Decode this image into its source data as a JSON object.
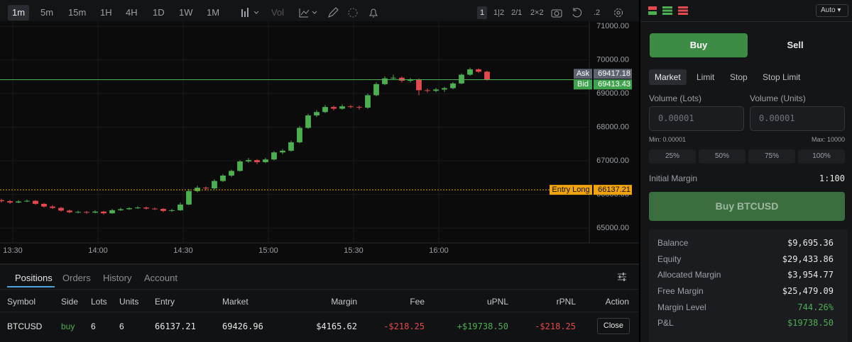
{
  "toolbar": {
    "timeframes": [
      "1m",
      "5m",
      "15m",
      "1H",
      "4H",
      "1D",
      "1W",
      "1M"
    ],
    "vol": "Vol",
    "layouts": [
      "1",
      "1|2",
      "2/1",
      "2×2"
    ],
    "decimals": ".2"
  },
  "chart_data": {
    "type": "candlestick",
    "x": [
      806,
      809,
      812,
      815,
      818,
      821,
      824,
      827,
      830,
      833,
      836,
      839,
      842,
      845,
      848,
      851,
      854,
      857,
      860,
      863,
      866,
      869,
      872,
      875,
      878,
      881,
      884,
      887,
      890,
      893,
      896,
      899,
      902,
      905,
      908,
      911,
      914,
      917,
      920,
      923,
      926,
      929,
      932,
      935,
      938,
      941,
      944,
      947,
      950,
      953,
      956,
      959,
      962,
      965,
      968,
      971,
      974,
      977
    ],
    "candles": [
      [
        65830,
        65870,
        65760,
        65800
      ],
      [
        65800,
        65840,
        65720,
        65760
      ],
      [
        65760,
        65830,
        65740,
        65790
      ],
      [
        65790,
        65850,
        65770,
        65810
      ],
      [
        65810,
        65830,
        65690,
        65720
      ],
      [
        65720,
        65750,
        65610,
        65640
      ],
      [
        65640,
        65680,
        65570,
        65600
      ],
      [
        65600,
        65630,
        65490,
        65520
      ],
      [
        65520,
        65550,
        65440,
        65470
      ],
      [
        65470,
        65520,
        65440,
        65480
      ],
      [
        65480,
        65510,
        65420,
        65460
      ],
      [
        65460,
        65530,
        65440,
        65490
      ],
      [
        65490,
        65510,
        65400,
        65440
      ],
      [
        65440,
        65570,
        65420,
        65530
      ],
      [
        65530,
        65600,
        65510,
        65560
      ],
      [
        65560,
        65620,
        65540,
        65590
      ],
      [
        65590,
        65650,
        65570,
        65610
      ],
      [
        65610,
        65640,
        65550,
        65580
      ],
      [
        65580,
        65610,
        65540,
        65570
      ],
      [
        65570,
        65590,
        65470,
        65510
      ],
      [
        65510,
        65570,
        65480,
        65530
      ],
      [
        65530,
        65760,
        65510,
        65700
      ],
      [
        65700,
        66160,
        65680,
        66100
      ],
      [
        66100,
        66260,
        66060,
        66200
      ],
      [
        66200,
        66240,
        66120,
        66180
      ],
      [
        66180,
        66450,
        66150,
        66400
      ],
      [
        66400,
        66600,
        66370,
        66560
      ],
      [
        66560,
        66740,
        66520,
        66700
      ],
      [
        66700,
        67020,
        66680,
        66980
      ],
      [
        66980,
        67080,
        66940,
        67020
      ],
      [
        67020,
        67050,
        66900,
        66960
      ],
      [
        66960,
        67090,
        66930,
        67040
      ],
      [
        67040,
        67290,
        67010,
        67250
      ],
      [
        67250,
        67350,
        67200,
        67300
      ],
      [
        67300,
        67600,
        67270,
        67550
      ],
      [
        67550,
        68030,
        67520,
        67980
      ],
      [
        67980,
        68400,
        67950,
        68350
      ],
      [
        68350,
        68510,
        68300,
        68450
      ],
      [
        68450,
        68660,
        68420,
        68600
      ],
      [
        68600,
        68640,
        68500,
        68550
      ],
      [
        68550,
        68680,
        68520,
        68620
      ],
      [
        68620,
        68660,
        68560,
        68600
      ],
      [
        68600,
        68640,
        68520,
        68580
      ],
      [
        68580,
        69000,
        68550,
        68950
      ],
      [
        68950,
        69330,
        68920,
        69280
      ],
      [
        69280,
        69510,
        69250,
        69450
      ],
      [
        69450,
        69560,
        69400,
        69470
      ],
      [
        69470,
        69510,
        69330,
        69380
      ],
      [
        69380,
        69460,
        69330,
        69420
      ],
      [
        69420,
        69450,
        68950,
        69100
      ],
      [
        69100,
        69150,
        69030,
        69080
      ],
      [
        69080,
        69170,
        69040,
        69120
      ],
      [
        69120,
        69200,
        69050,
        69160
      ],
      [
        69160,
        69340,
        69130,
        69300
      ],
      [
        69300,
        69600,
        69280,
        69560
      ],
      [
        69560,
        69770,
        69530,
        69720
      ],
      [
        69720,
        69750,
        69610,
        69650
      ],
      [
        69650,
        69680,
        69380,
        69410
      ]
    ],
    "up_color": "#4caf50",
    "down_color": "#e5484d",
    "xlim": [
      805.5,
      1013
    ],
    "xticks": [
      {
        "value": 810,
        "label": "13:30"
      },
      {
        "value": 840,
        "label": "14:00"
      },
      {
        "value": 870,
        "label": "14:30"
      },
      {
        "value": 900,
        "label": "15:00"
      },
      {
        "value": 930,
        "label": "15:30"
      },
      {
        "value": 960,
        "label": "16:00"
      }
    ],
    "ylim": [
      64560,
      71150
    ],
    "yticks": [
      {
        "value": 65000,
        "label": "65000.00"
      },
      {
        "value": 66000,
        "label": "66000.00"
      },
      {
        "value": 67000,
        "label": "67000.00"
      },
      {
        "value": 68000,
        "label": "68000.00"
      },
      {
        "value": 69000,
        "label": "69000.00"
      },
      {
        "value": 70000,
        "label": "70000.00"
      },
      {
        "value": 71000,
        "label": "71000.00"
      }
    ],
    "grid": true,
    "ask_label": "Ask",
    "ask": 69417.18,
    "bid_label": "Bid",
    "bid": 69413.43,
    "entry_label": "Entry Long",
    "entry": 66137.21
  },
  "positions": {
    "tabs": [
      "Positions",
      "Orders",
      "History",
      "Account"
    ],
    "columns": [
      "Symbol",
      "Side",
      "Lots",
      "Units",
      "Entry",
      "Market",
      "Margin",
      "Fee",
      "uPNL",
      "rPNL",
      "Action"
    ],
    "rows": [
      [
        "BTCUSD",
        "buy",
        "6",
        "6",
        "66137.21",
        "69426.96",
        "$4165.62",
        "-$218.25",
        "+$19738.50",
        "-$218.25"
      ]
    ],
    "action": "Close"
  },
  "order": {
    "auto": "Auto",
    "sides": [
      "Buy",
      "Sell"
    ],
    "order_types": [
      "Market",
      "Limit",
      "Stop",
      "Stop Limit"
    ],
    "volume_lots": "Volume (Lots)",
    "volume_units": "Volume (Units)",
    "placeholder": "0.00001",
    "min": "Min: 0.00001",
    "max": "Max: 10000",
    "percents": [
      "25%",
      "50%",
      "75%",
      "100%"
    ],
    "initial_margin_label": "Initial Margin",
    "initial_margin": "1:100",
    "submit": "Buy BTCUSD"
  },
  "account": {
    "rows": [
      [
        "Balance",
        "$9,695.36"
      ],
      [
        "Equity",
        "$29,433.86"
      ],
      [
        "Allocated Margin",
        "$3,954.77"
      ],
      [
        "Free Margin",
        "$25,479.09"
      ],
      [
        "Margin Level",
        "744.26%"
      ],
      [
        "P&L",
        "$19738.50"
      ]
    ]
  }
}
